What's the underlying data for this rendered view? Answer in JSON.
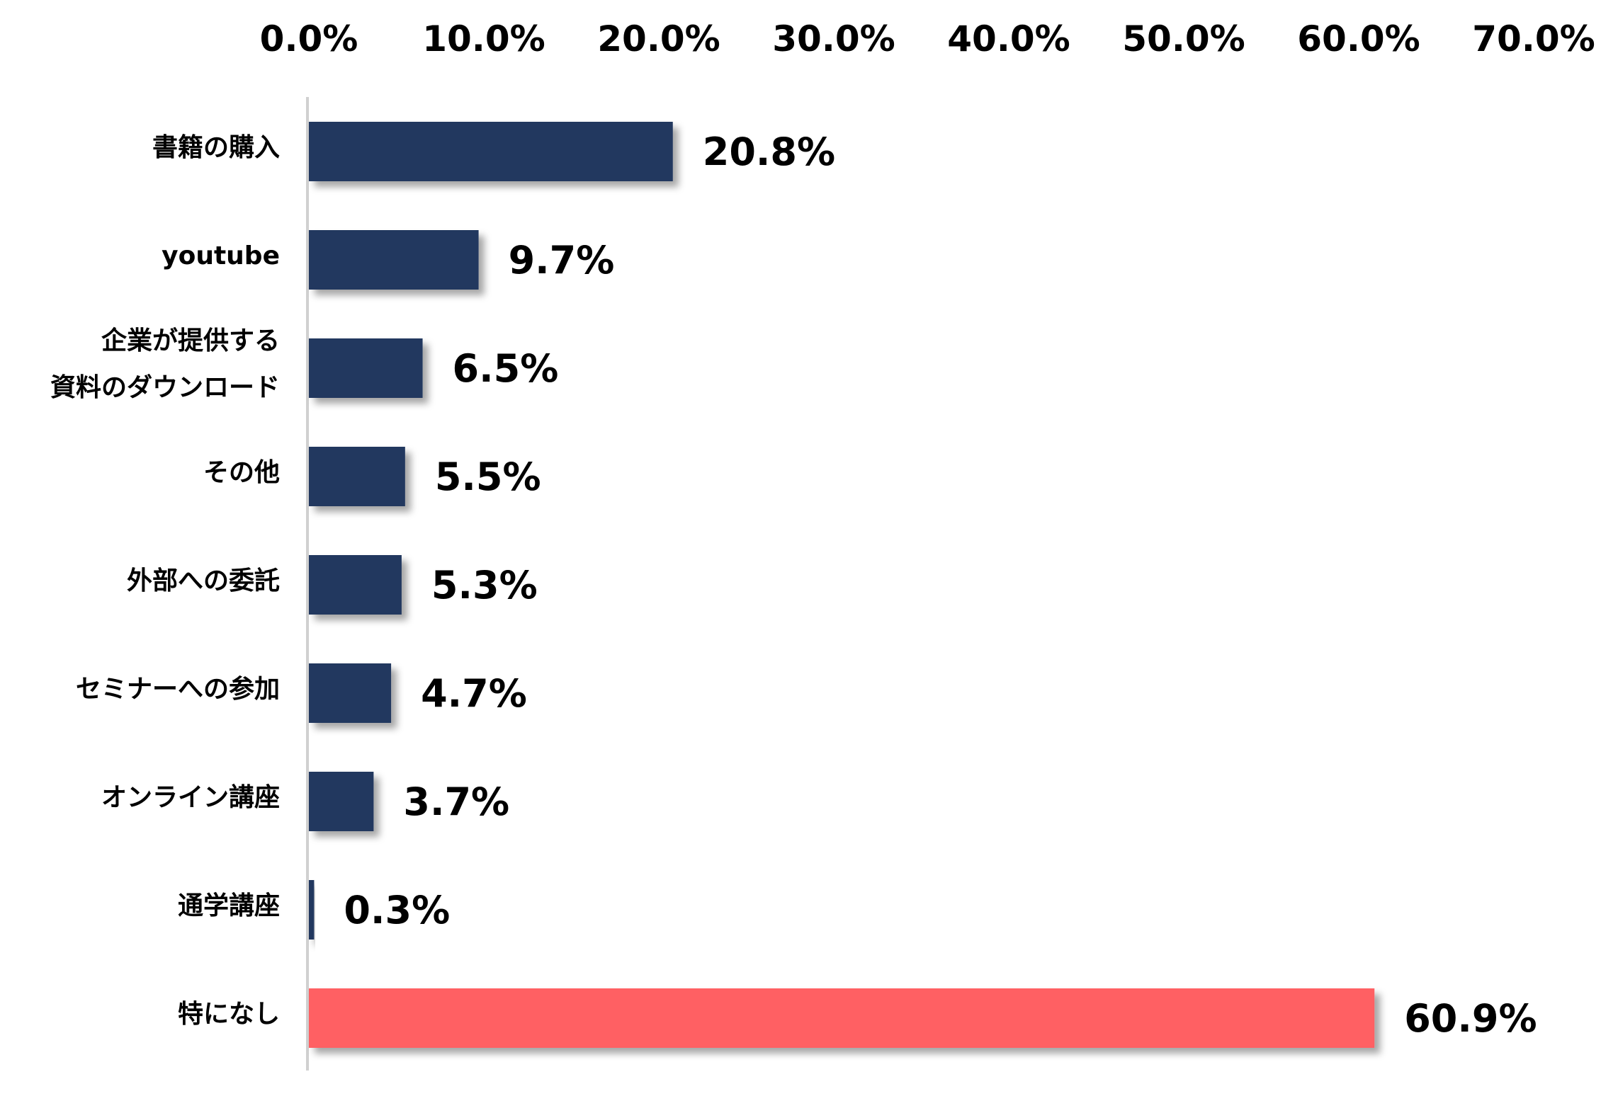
{
  "chart_data": {
    "type": "bar",
    "orientation": "horizontal",
    "title": "",
    "xlabel": "",
    "ylabel": "",
    "xlim": [
      0,
      70
    ],
    "x_ticks": [
      "0.0%",
      "10.0%",
      "20.0%",
      "30.0%",
      "40.0%",
      "50.0%",
      "60.0%",
      "70.0%"
    ],
    "x_axis_position": "top",
    "grid": false,
    "legend": "none",
    "categories": [
      [
        "書籍の購入"
      ],
      [
        "youtube"
      ],
      [
        "企業が提供する",
        "資料のダウンロード"
      ],
      [
        "その他"
      ],
      [
        "外部への委託"
      ],
      [
        "セミナーへの参加"
      ],
      [
        "オンライン講座"
      ],
      [
        "通学講座"
      ],
      [
        "特になし"
      ]
    ],
    "values": [
      20.8,
      9.7,
      6.5,
      5.5,
      5.3,
      4.7,
      3.7,
      0.3,
      60.9
    ],
    "value_labels": [
      "20.8%",
      "9.7%",
      "6.5%",
      "5.5%",
      "5.3%",
      "4.7%",
      "3.7%",
      "0.3%",
      "60.9%"
    ],
    "colors": {
      "bar": "#22375F",
      "highlight_bar": "#FF6163",
      "axis_line": "#D0D0D0"
    },
    "highlight_index": 8
  }
}
